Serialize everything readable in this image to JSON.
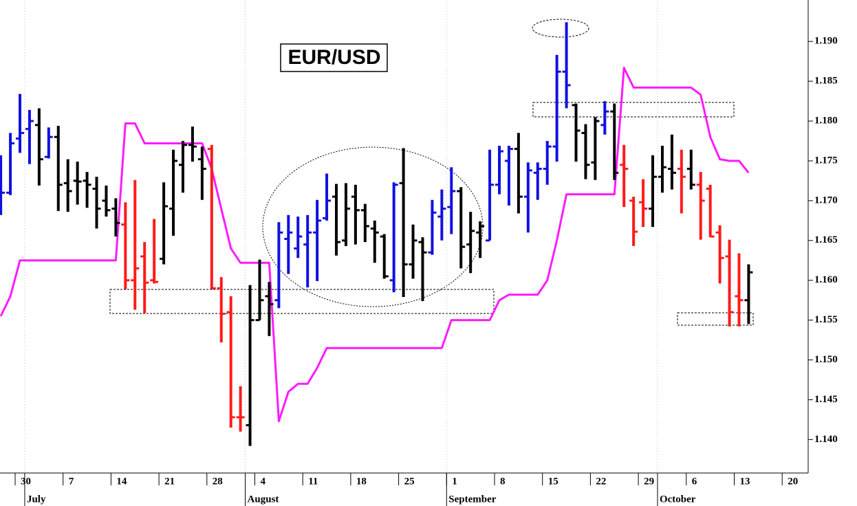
{
  "chart_data": {
    "type": "ohlc",
    "title": "EUR/USD",
    "x": [
      "06-26",
      "06-27",
      "06-30",
      "07-01",
      "07-02",
      "07-03",
      "07-04",
      "07-07",
      "07-08",
      "07-09",
      "07-10",
      "07-11",
      "07-14",
      "07-15",
      "07-16",
      "07-17",
      "07-18",
      "07-21",
      "07-22",
      "07-23",
      "07-24",
      "07-25",
      "07-28",
      "07-29",
      "07-30",
      "07-31",
      "08-01",
      "08-04",
      "08-05",
      "08-06",
      "08-07",
      "08-08",
      "08-11",
      "08-12",
      "08-13",
      "08-14",
      "08-15",
      "08-18",
      "08-19",
      "08-20",
      "08-21",
      "08-22",
      "08-25",
      "08-26",
      "08-27",
      "08-28",
      "08-29",
      "09-01",
      "09-02",
      "09-03",
      "09-04",
      "09-05",
      "09-08",
      "09-09",
      "09-10",
      "09-11",
      "09-12",
      "09-15",
      "09-16",
      "09-17",
      "09-18",
      "09-19",
      "09-22",
      "09-23",
      "09-24",
      "09-25",
      "09-26",
      "09-29",
      "09-30",
      "10-01",
      "10-02",
      "10-03",
      "10-06",
      "10-07",
      "10-08",
      "10-09",
      "10-10",
      "10-13",
      "10-14"
    ],
    "series": [
      {
        "type": "ohlc",
        "open": [
          1.1695,
          1.171,
          1.1778,
          1.179,
          1.1795,
          1.1755,
          1.178,
          1.1722,
          1.1725,
          1.1725,
          1.1715,
          1.17,
          1.169,
          1.167,
          1.16,
          1.163,
          1.16,
          1.1627,
          1.169,
          1.1745,
          1.177,
          1.1752,
          1.1765,
          1.159,
          1.156,
          1.1428,
          1.1418,
          1.155,
          1.158,
          1.1575,
          1.1652,
          1.164,
          1.1645,
          1.166,
          1.1678,
          1.1705,
          1.165,
          1.1705,
          1.1688,
          1.1665,
          1.1655,
          1.16,
          1.1722,
          1.162,
          1.1648,
          1.1635,
          1.168,
          1.1692,
          1.1712,
          1.1645,
          1.166,
          1.165,
          1.172,
          1.175,
          1.1765,
          1.1705,
          1.1735,
          1.174,
          1.1768,
          1.1862,
          1.182,
          1.1785,
          1.1748,
          1.1795,
          1.1812,
          1.1745,
          1.17,
          1.1698,
          1.169,
          1.173,
          1.174,
          1.174,
          1.174,
          1.172,
          1.1715,
          1.166,
          1.163,
          1.158,
          1.1575
        ],
        "high": [
          1.1757,
          1.1785,
          1.1834,
          1.1814,
          1.1816,
          1.1792,
          1.1794,
          1.1752,
          1.1749,
          1.1736,
          1.173,
          1.1719,
          1.1703,
          1.1698,
          1.1726,
          1.1648,
          1.1677,
          1.1723,
          1.1764,
          1.1775,
          1.1793,
          1.1768,
          1.177,
          1.1604,
          1.158,
          1.1467,
          1.1594,
          1.1626,
          1.1598,
          1.1673,
          1.1682,
          1.168,
          1.1682,
          1.1701,
          1.1734,
          1.1721,
          1.1722,
          1.172,
          1.1696,
          1.1675,
          1.1658,
          1.1723,
          1.1766,
          1.167,
          1.1654,
          1.1701,
          1.1714,
          1.1742,
          1.1717,
          1.1686,
          1.1674,
          1.1764,
          1.1769,
          1.1769,
          1.1785,
          1.1748,
          1.1748,
          1.1775,
          1.1883,
          1.1924,
          1.1822,
          1.1796,
          1.1805,
          1.1825,
          1.1822,
          1.177,
          1.1705,
          1.1727,
          1.1757,
          1.1769,
          1.1783,
          1.1764,
          1.1764,
          1.1736,
          1.172,
          1.1669,
          1.1651,
          1.1634,
          1.162
        ],
        "low": [
          1.1682,
          1.1707,
          1.176,
          1.1746,
          1.1719,
          1.1753,
          1.1687,
          1.1686,
          1.1695,
          1.1691,
          1.1665,
          1.168,
          1.1655,
          1.1589,
          1.1563,
          1.1559,
          1.1596,
          1.162,
          1.1656,
          1.171,
          1.1749,
          1.1701,
          1.1589,
          1.1522,
          1.1415,
          1.141,
          1.1392,
          1.155,
          1.153,
          1.1565,
          1.1608,
          1.1628,
          1.1591,
          1.1599,
          1.1675,
          1.1631,
          1.1643,
          1.1645,
          1.1648,
          1.1622,
          1.1602,
          1.1585,
          1.1579,
          1.1602,
          1.1574,
          1.1632,
          1.165,
          1.1658,
          1.1615,
          1.1609,
          1.1628,
          1.165,
          1.1708,
          1.1694,
          1.1684,
          1.166,
          1.1701,
          1.172,
          1.1749,
          1.1816,
          1.1749,
          1.1727,
          1.1726,
          1.1783,
          1.1726,
          1.1692,
          1.1643,
          1.1667,
          1.1667,
          1.171,
          1.1714,
          1.1684,
          1.1714,
          1.1651,
          1.1654,
          1.1596,
          1.1542,
          1.1542,
          1.1545
        ],
        "close": [
          1.171,
          1.1772,
          1.1785,
          1.18,
          1.1752,
          1.178,
          1.172,
          1.1712,
          1.1724,
          1.172,
          1.169,
          1.1688,
          1.1672,
          1.16,
          1.1615,
          1.1597,
          1.1598,
          1.1693,
          1.175,
          1.177,
          1.1768,
          1.174,
          1.159,
          1.1558,
          1.1428,
          1.1428,
          1.155,
          1.1575,
          1.157,
          1.166,
          1.166,
          1.1655,
          1.166,
          1.1675,
          1.17,
          1.1648,
          1.169,
          1.1688,
          1.1668,
          1.166,
          1.1605,
          1.172,
          1.162,
          1.165,
          1.1635,
          1.1685,
          1.169,
          1.1712,
          1.1642,
          1.1662,
          1.1668,
          1.172,
          1.1762,
          1.1765,
          1.1705,
          1.1738,
          1.174,
          1.1768,
          1.1862,
          1.1845,
          1.1788,
          1.1745,
          1.18,
          1.1812,
          1.1735,
          1.174,
          1.1661,
          1.169,
          1.173,
          1.1742,
          1.1735,
          1.173,
          1.172,
          1.17,
          1.1655,
          1.1628,
          1.156,
          1.1575,
          1.161
        ],
        "colors": [
          "#1010e0",
          "#1010e0",
          "#1010e0",
          "#1010e0",
          "#000000",
          "#1010e0",
          "#000000",
          "#000000",
          "#000000",
          "#000000",
          "#000000",
          "#000000",
          "#000000",
          "#ff1a1a",
          "#ff1a1a",
          "#ff1a1a",
          "#ff1a1a",
          "#000000",
          "#000000",
          "#000000",
          "#000000",
          "#000000",
          "#ff1a1a",
          "#ff1a1a",
          "#ff1a1a",
          "#ff1a1a",
          "#000000",
          "#000000",
          "#000000",
          "#1010e0",
          "#1010e0",
          "#1010e0",
          "#1010e0",
          "#1010e0",
          "#1010e0",
          "#000000",
          "#000000",
          "#000000",
          "#000000",
          "#000000",
          "#000000",
          "#1010e0",
          "#000000",
          "#000000",
          "#000000",
          "#1010e0",
          "#1010e0",
          "#1010e0",
          "#000000",
          "#000000",
          "#000000",
          "#1010e0",
          "#1010e0",
          "#1010e0",
          "#000000",
          "#1010e0",
          "#1010e0",
          "#1010e0",
          "#1010e0",
          "#1010e0",
          "#000000",
          "#000000",
          "#000000",
          "#1010e0",
          "#000000",
          "#ff1a1a",
          "#ff1a1a",
          "#ff1a1a",
          "#000000",
          "#000000",
          "#000000",
          "#ff1a1a",
          "#000000",
          "#ff1a1a",
          "#ff1a1a",
          "#ff1a1a",
          "#ff1a1a",
          "#ff1a1a",
          "#000000"
        ]
      },
      {
        "type": "line",
        "color": "#ff1aff",
        "values": [
          1.1555,
          1.158,
          1.1625,
          1.1625,
          1.1625,
          1.1625,
          1.1625,
          1.1625,
          1.1625,
          1.1625,
          1.1625,
          1.1625,
          1.1625,
          1.1797,
          1.1797,
          1.1772,
          1.1772,
          1.1772,
          1.1772,
          1.1772,
          1.1772,
          1.1772,
          1.174,
          1.169,
          1.164,
          1.1622,
          1.1622,
          1.1622,
          1.1622,
          1.1423,
          1.146,
          1.147,
          1.147,
          1.149,
          1.1515,
          1.1515,
          1.1515,
          1.1515,
          1.1515,
          1.1515,
          1.1515,
          1.1515,
          1.1515,
          1.1515,
          1.1515,
          1.1515,
          1.1515,
          1.155,
          1.155,
          1.155,
          1.155,
          1.155,
          1.1575,
          1.1582,
          1.1582,
          1.1582,
          1.1582,
          1.16,
          1.165,
          1.1708,
          1.1708,
          1.1708,
          1.1708,
          1.1708,
          1.1708,
          1.1867,
          1.1842,
          1.1842,
          1.1842,
          1.1842,
          1.1842,
          1.1842,
          1.1842,
          1.1833,
          1.178,
          1.1752,
          1.175,
          1.175,
          1.1735
        ]
      }
    ],
    "ylim": [
      1.1358,
      1.1952
    ],
    "yticks": [
      {
        "value": 1.14,
        "label": "1.140"
      },
      1.145,
      {
        "value": 1.15,
        "label": "1.150"
      },
      1.155,
      {
        "value": 1.16,
        "label": "1.160"
      },
      1.165,
      {
        "value": 1.17,
        "label": "1.170"
      },
      1.175,
      {
        "value": 1.18,
        "label": "1.180"
      },
      1.185,
      {
        "value": 1.19,
        "label": "1.190"
      }
    ],
    "xticks": [
      {
        "value": "06-30",
        "label": "30"
      },
      {
        "value": "07-07",
        "label": "7"
      },
      {
        "value": "07-14",
        "label": "14"
      },
      {
        "value": "07-21",
        "label": "21"
      },
      {
        "value": "07-28",
        "label": "28"
      },
      {
        "value": "08-04",
        "label": "4"
      },
      {
        "value": "08-11",
        "label": "11"
      },
      {
        "value": "08-18",
        "label": "18"
      },
      {
        "value": "08-25",
        "label": "25"
      },
      {
        "value": "09-01",
        "label": "1"
      },
      {
        "value": "09-08",
        "label": "8"
      },
      {
        "value": "09-15",
        "label": "15"
      },
      {
        "value": "09-22",
        "label": "22"
      },
      {
        "value": "09-29",
        "label": "29"
      },
      {
        "value": "10-06",
        "label": "6"
      },
      {
        "value": "10-13",
        "label": "13"
      },
      {
        "value": "10-20",
        "label": "20"
      }
    ],
    "month_ticks": [
      {
        "value": "07-01",
        "label": "July"
      },
      {
        "value": "08-01",
        "label": "August"
      },
      {
        "value": "09-01",
        "label": "September"
      },
      {
        "value": "10-01",
        "label": "October"
      }
    ]
  }
}
